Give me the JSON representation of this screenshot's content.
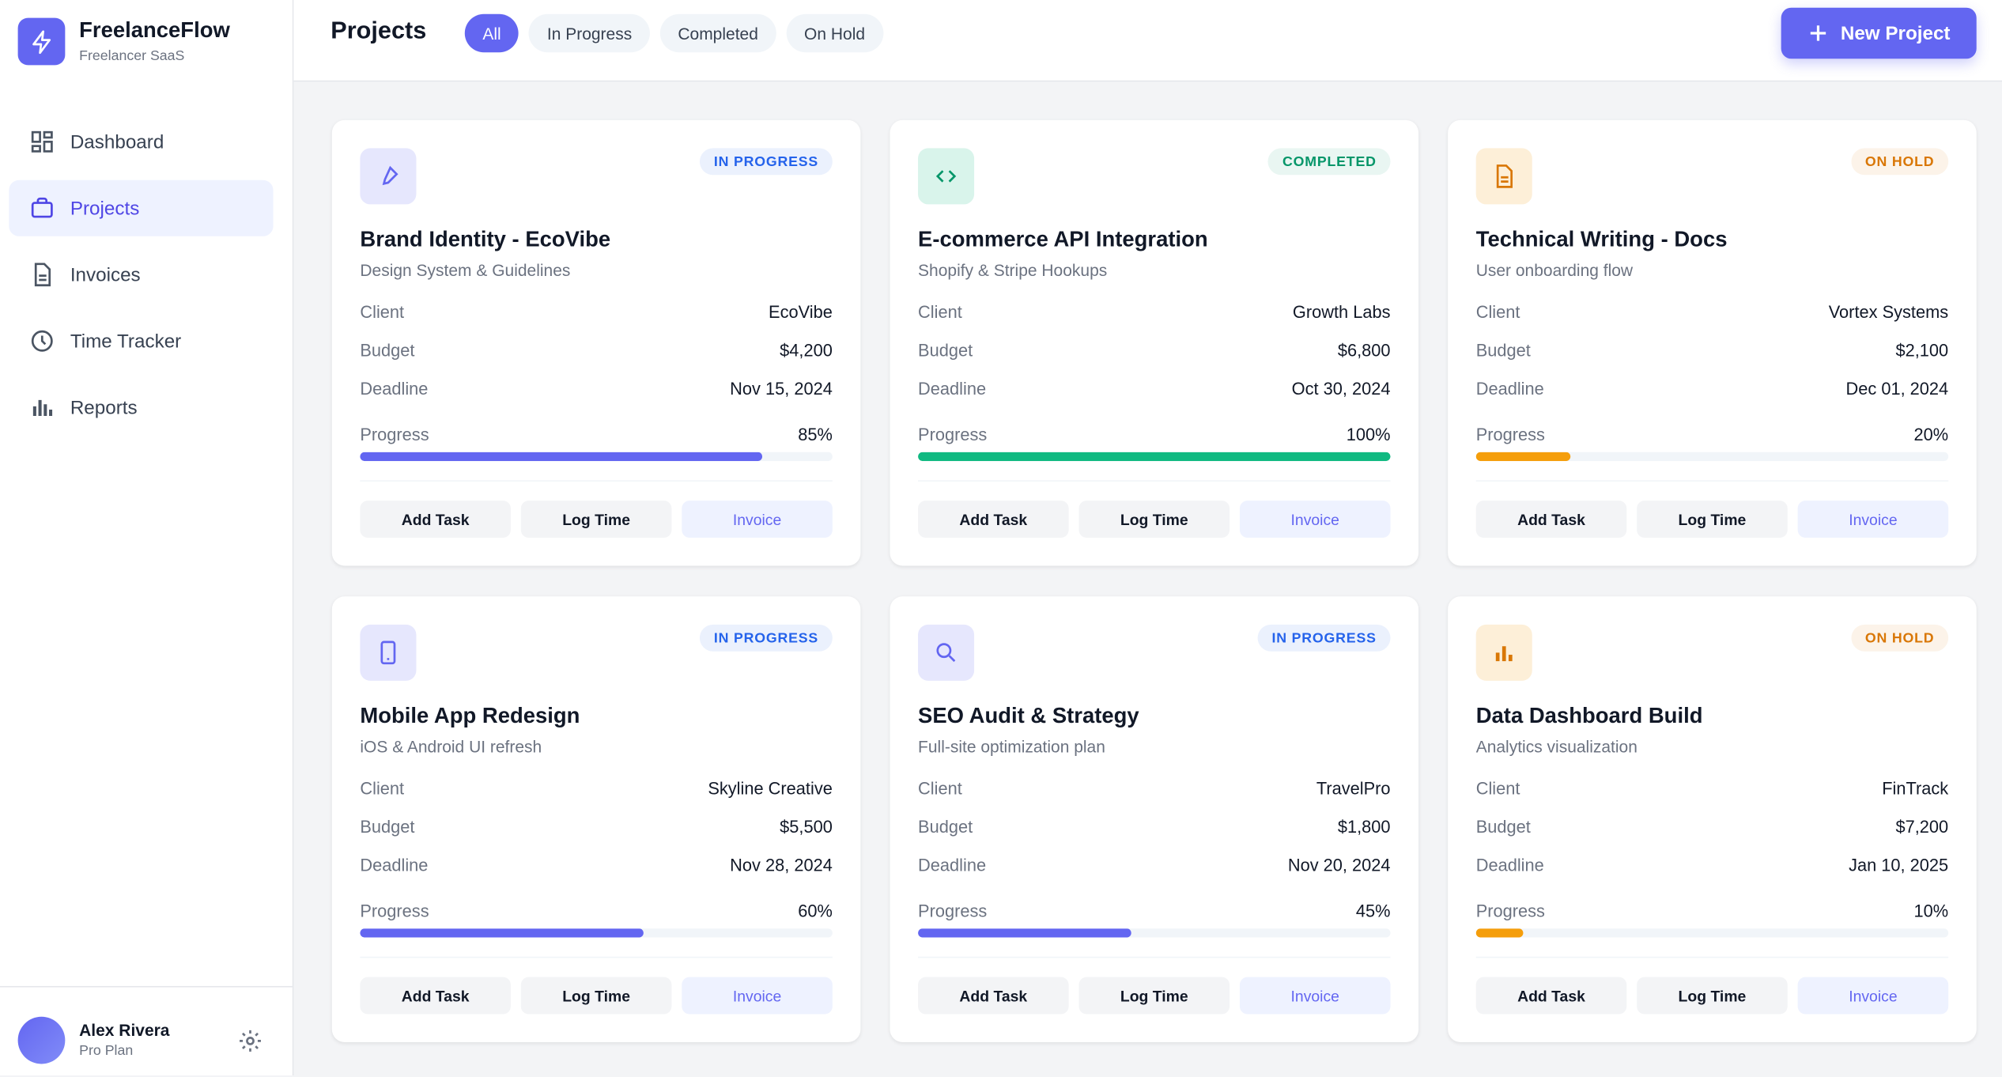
{
  "sidebar": {
    "brand": "FreelanceFlow",
    "tagline": "Freelancer SaaS",
    "nav": [
      "Dashboard",
      "Projects",
      "Invoices",
      "Time Tracker",
      "Reports"
    ],
    "active": 1,
    "user": {
      "name": "Alex Rivera",
      "plan": "Pro Plan"
    }
  },
  "header": {
    "title": "Projects",
    "filters": [
      "All",
      "In Progress",
      "Completed",
      "On Hold"
    ],
    "active_filter": 0,
    "button": "New Project"
  },
  "field_labels": {
    "client": "Client",
    "budget": "Budget",
    "deadline": "Deadline",
    "progress": "Progress"
  },
  "actions": [
    "Add Task",
    "Log Time",
    "Invoice"
  ],
  "projects": [
    {
      "title": "Brand Identity - EcoVibe",
      "subtitle": "Design System & Guidelines",
      "status": "IN PROGRESS",
      "status_color": "#2563eb",
      "accent": "#6366f1",
      "client": "EcoVibe",
      "budget": "$4,200",
      "deadline": "Nov 15, 2024",
      "progress": {
        "value": 85,
        "label": "85%"
      }
    },
    {
      "title": "E-commerce API Integration",
      "subtitle": "Shopify & Stripe Hookups",
      "status": "COMPLETED",
      "status_color": "#059669",
      "accent": "#10b981",
      "client": "Growth Labs",
      "budget": "$6,800",
      "deadline": "Oct 30, 2024",
      "progress": {
        "value": 100,
        "label": "100%"
      }
    },
    {
      "title": "Technical Writing - Docs",
      "subtitle": "User onboarding flow",
      "status": "ON HOLD",
      "status_color": "#d97706",
      "accent": "#f59e0b",
      "client": "Vortex Systems",
      "budget": "$2,100",
      "deadline": "Dec 01, 2024",
      "progress": {
        "value": 20,
        "label": "20%"
      }
    },
    {
      "title": "Mobile App Redesign",
      "subtitle": "iOS & Android UI refresh",
      "status": "IN PROGRESS",
      "status_color": "#2563eb",
      "accent": "#6366f1",
      "client": "Skyline Creative",
      "budget": "$5,500",
      "deadline": "Nov 28, 2024",
      "progress": {
        "value": 60,
        "label": "60%"
      }
    },
    {
      "title": "SEO Audit & Strategy",
      "subtitle": "Full-site optimization plan",
      "status": "IN PROGRESS",
      "status_color": "#2563eb",
      "accent": "#6366f1",
      "client": "TravelPro",
      "budget": "$1,800",
      "deadline": "Nov 20, 2024",
      "progress": {
        "value": 45,
        "label": "45%"
      }
    },
    {
      "title": "Data Dashboard Build",
      "subtitle": "Analytics visualization",
      "status": "ON HOLD",
      "status_color": "#d97706",
      "accent": "#f59e0b",
      "client": "FinTrack",
      "budget": "$7,200",
      "deadline": "Jan 10, 2025",
      "progress": {
        "value": 10,
        "label": "10%"
      }
    }
  ]
}
